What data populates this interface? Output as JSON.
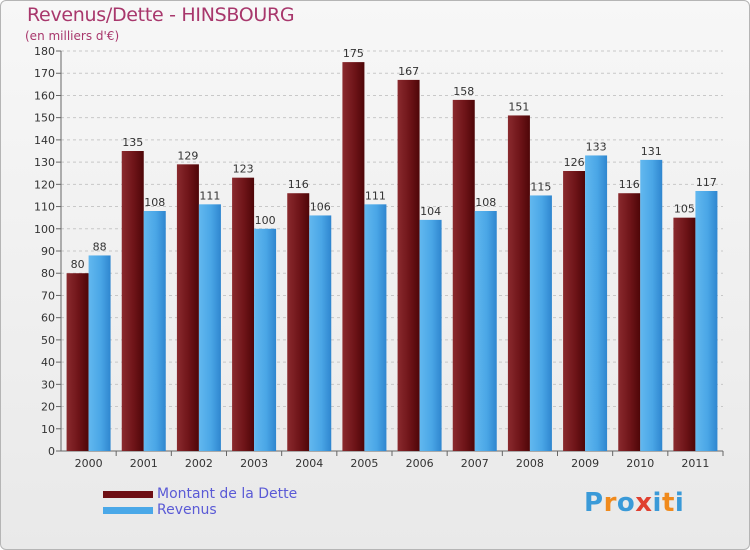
{
  "header": {
    "title": "Revenus/Dette - HINSBOURG",
    "subtitle": "(en milliers d'€)"
  },
  "legend": {
    "items": [
      {
        "label": "Montant de la Dette",
        "color": "#6e0f14"
      },
      {
        "label": "Revenus",
        "color": "#4aa8e8"
      }
    ]
  },
  "logo": {
    "text": "Proxiti",
    "letters": [
      "P",
      "r",
      "o",
      "x",
      "i",
      "t",
      "i"
    ],
    "colors": [
      "#3a9ad8",
      "#f08a1c",
      "#3a9ad8",
      "#e04030",
      "#3a9ad8",
      "#f08a1c",
      "#3a9ad8"
    ]
  },
  "chart_data": {
    "type": "bar",
    "title": "Revenus/Dette - HINSBOURG",
    "subtitle": "(en milliers d'€)",
    "xlabel": "",
    "ylabel": "",
    "ylim": [
      0,
      180
    ],
    "ytick_step": 10,
    "grid": true,
    "legend_position": "bottom-left",
    "categories": [
      "2000",
      "2001",
      "2002",
      "2003",
      "2004",
      "2005",
      "2006",
      "2007",
      "2008",
      "2009",
      "2010",
      "2011"
    ],
    "series": [
      {
        "name": "Montant de la Dette",
        "color": "#6e0f14",
        "values": [
          80,
          135,
          129,
          123,
          116,
          175,
          167,
          158,
          151,
          126,
          116,
          105
        ]
      },
      {
        "name": "Revenus",
        "color": "#4aa8e8",
        "values": [
          88,
          108,
          111,
          100,
          106,
          111,
          104,
          108,
          115,
          133,
          131,
          117
        ]
      }
    ]
  }
}
